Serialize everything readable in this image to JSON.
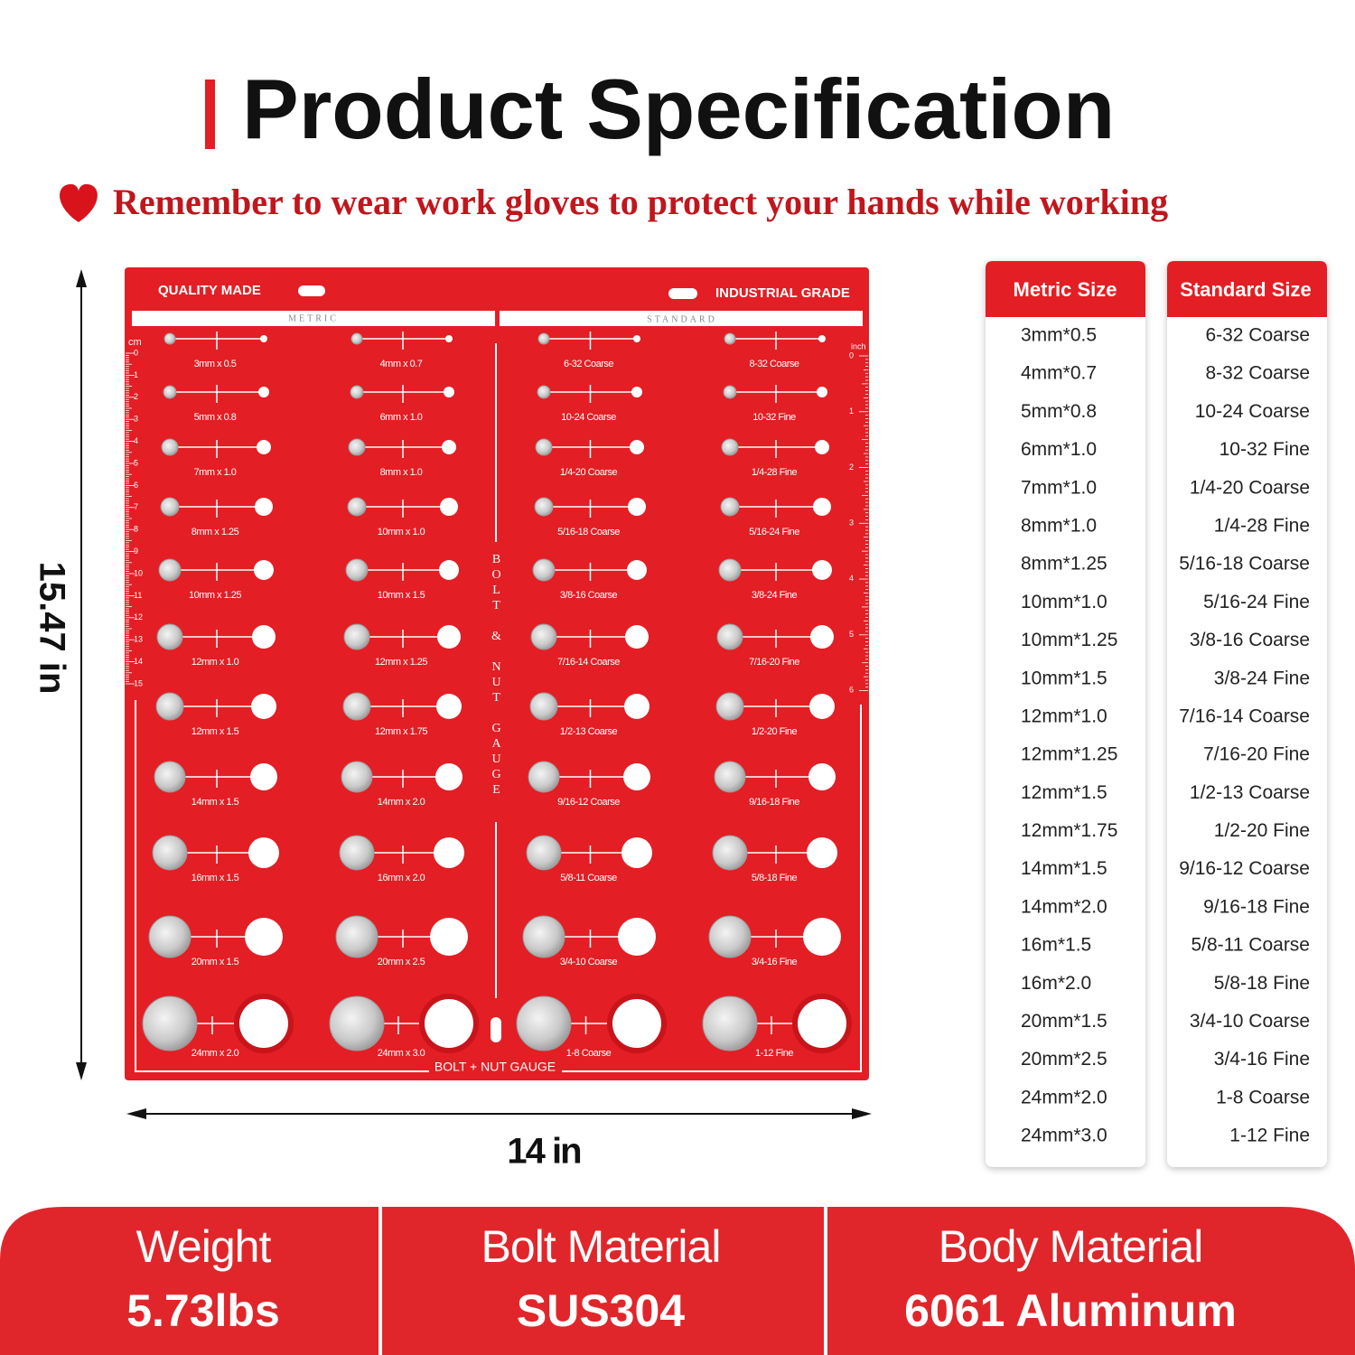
{
  "header": {
    "title": "Product Specification",
    "notice": "Remember to wear work gloves to protect your hands while working"
  },
  "gauge": {
    "top_left": "QUALITY MADE",
    "top_right": "INDUSTRIAL GRADE",
    "metric_header": "METRIC",
    "standard_header": "STANDARD",
    "side_label": "BOLT & NUT GAUGE",
    "bottom_label": "BOLT + NUT GAUGE",
    "ruler_cm_unit": "cm",
    "ruler_cm": [
      "0",
      "1",
      "2",
      "3",
      "4",
      "5",
      "6",
      "7",
      "8",
      "9",
      "10",
      "11",
      "12",
      "13",
      "14",
      "15"
    ],
    "ruler_inch_unit": "inch",
    "ruler_inch": [
      "0",
      "1",
      "2",
      "3",
      "4",
      "5",
      "6"
    ],
    "columns": [
      [
        "3mm x 0.5",
        "5mm x 0.8",
        "7mm x 1.0",
        "8mm x 1.25",
        "10mm x 1.25",
        "12mm x 1.0",
        "12mm x 1.5",
        "14mm x 1.5",
        "16mm x 1.5",
        "20mm x 1.5",
        "24mm x 2.0"
      ],
      [
        "4mm x 0.7",
        "6mm x 1.0",
        "8mm x 1.0",
        "10mm x 1.0",
        "10mm x 1.5",
        "12mm x 1.25",
        "12mm x 1.75",
        "14mm x 2.0",
        "16mm x 2.0",
        "20mm x 2.5",
        "24mm x 3.0"
      ],
      [
        "6-32 Coarse",
        "10-24 Coarse",
        "1/4-20 Coarse",
        "5/16-18 Coarse",
        "3/8-16 Coarse",
        "7/16-14 Coarse",
        "1/2-13 Coarse",
        "9/16-12 Coarse",
        "5/8-11 Coarse",
        "3/4-10 Coarse",
        "1-8 Coarse"
      ],
      [
        "8-32 Coarse",
        "10-32 Fine",
        "1/4-28 Fine",
        "5/16-24 Fine",
        "3/8-24 Fine",
        "7/16-20 Fine",
        "1/2-20 Fine",
        "9/16-18 Fine",
        "5/8-18 Fine",
        "3/4-16 Fine",
        "1-12 Fine"
      ]
    ]
  },
  "dimensions": {
    "height": "15.47 in",
    "width": "14 in"
  },
  "tables": {
    "metric": {
      "header": "Metric Size",
      "rows": [
        "3mm*0.5",
        "4mm*0.7",
        "5mm*0.8",
        "6mm*1.0",
        "7mm*1.0",
        "8mm*1.0",
        "8mm*1.25",
        "10mm*1.0",
        "10mm*1.25",
        "10mm*1.5",
        "12mm*1.0",
        "12mm*1.25",
        "12mm*1.5",
        "12mm*1.75",
        "14mm*1.5",
        "14mm*2.0",
        "16m*1.5",
        "16m*2.0",
        "20mm*1.5",
        "20mm*2.5",
        "24mm*2.0",
        "24mm*3.0"
      ]
    },
    "standard": {
      "header": "Standard Size",
      "rows": [
        "6-32 Coarse",
        "8-32 Coarse",
        "10-24 Coarse",
        "10-32 Fine",
        "1/4-20 Coarse",
        "1/4-28 Fine",
        "5/16-18 Coarse",
        "5/16-24 Fine",
        "3/8-16 Coarse",
        "3/8-24 Fine",
        "7/16-14 Coarse",
        "7/16-20 Fine",
        "1/2-13 Coarse",
        "1/2-20 Fine",
        "9/16-12 Coarse",
        "9/16-18 Fine",
        "5/8-11 Coarse",
        "5/8-18 Fine",
        "3/4-10 Coarse",
        "3/4-16 Fine",
        "1-8 Coarse",
        "1-12 Fine"
      ]
    }
  },
  "specs": [
    {
      "label": "Weight",
      "value": "5.73lbs"
    },
    {
      "label": "Bolt Material",
      "value": "SUS304"
    },
    {
      "label": "Body Material",
      "value": "6061 Aluminum"
    }
  ]
}
